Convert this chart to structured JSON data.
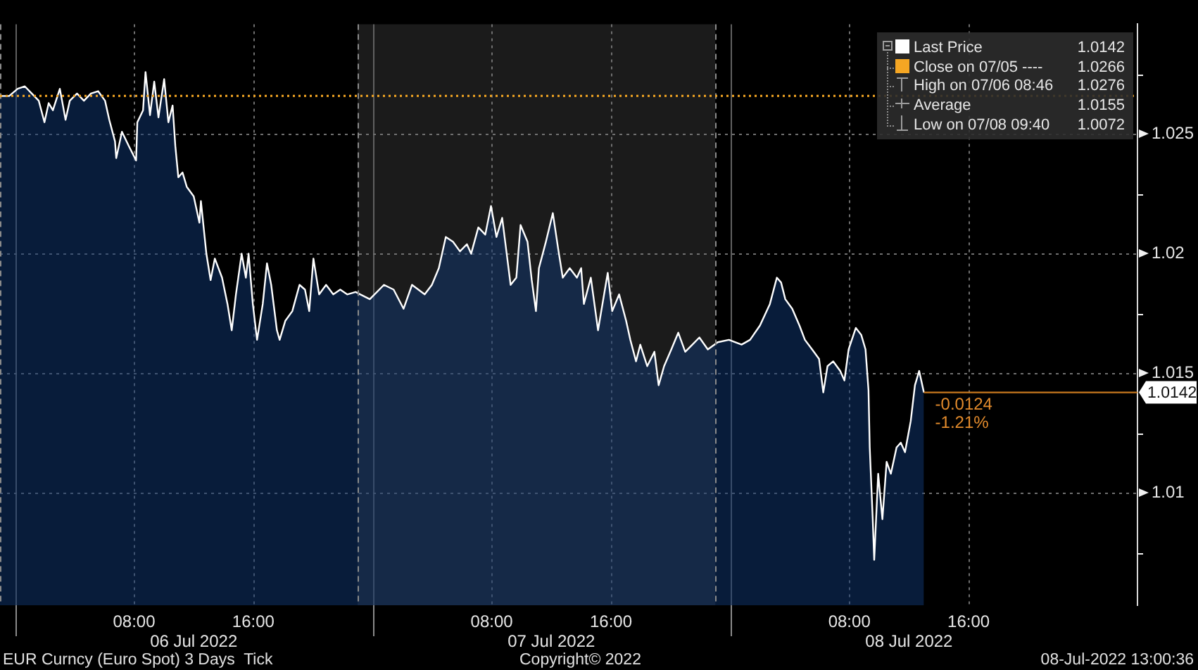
{
  "chart_data": {
    "type": "area",
    "title": "EUR Curncy (Euro Spot) 3 Days  Tick",
    "x": [
      "2022-07-05T23:00",
      "2022-07-05T23:37",
      "2022-07-06T00:11",
      "2022-07-06T00:40",
      "2022-07-06T01:08",
      "2022-07-06T01:36",
      "2022-07-06T01:59",
      "2022-07-06T02:16",
      "2022-07-06T02:33",
      "2022-07-06T03:01",
      "2022-07-06T03:24",
      "2022-07-06T03:41",
      "2022-07-06T04:10",
      "2022-07-06T04:38",
      "2022-07-06T05:06",
      "2022-07-06T05:35",
      "2022-07-06T06:03",
      "2022-07-06T06:20",
      "2022-07-06T06:43",
      "2022-07-06T06:48",
      "2022-07-06T07:11",
      "2022-07-06T07:39",
      "2022-07-06T08:08",
      "2022-07-06T08:13",
      "2022-07-06T08:36",
      "2022-07-06T08:46",
      "2022-07-06T09:04",
      "2022-07-06T09:21",
      "2022-07-06T09:38",
      "2022-07-06T10:01",
      "2022-07-06T10:18",
      "2022-07-06T10:35",
      "2022-07-06T10:46",
      "2022-07-06T10:58",
      "2022-07-06T11:15",
      "2022-07-06T11:32",
      "2022-07-06T12:00",
      "2022-07-06T12:23",
      "2022-07-06T12:29",
      "2022-07-06T12:51",
      "2022-07-06T13:08",
      "2022-07-06T13:25",
      "2022-07-06T13:54",
      "2022-07-06T14:16",
      "2022-07-06T14:33",
      "2022-07-06T14:50",
      "2022-07-06T15:13",
      "2022-07-06T15:30",
      "2022-07-06T15:41",
      "2022-07-06T15:58",
      "2022-07-06T16:15",
      "2022-07-06T16:38",
      "2022-07-06T16:55",
      "2022-07-06T17:12",
      "2022-07-06T17:35",
      "2022-07-06T17:46",
      "2022-07-06T18:09",
      "2022-07-06T18:37",
      "2022-07-06T19:06",
      "2022-07-06T19:28",
      "2022-07-06T19:45",
      "2022-07-06T20:02",
      "2022-07-06T20:25",
      "2022-07-06T20:53",
      "2022-07-06T21:22",
      "2022-07-06T21:50",
      "2022-07-06T22:18",
      "2022-07-06T22:52",
      "2022-07-06T23:49",
      "2022-07-07T00:46",
      "2022-07-07T01:25",
      "2022-07-07T02:05",
      "2022-07-07T02:39",
      "2022-07-07T03:30",
      "2022-07-07T03:59",
      "2022-07-07T04:27",
      "2022-07-07T04:55",
      "2022-07-07T05:24",
      "2022-07-07T05:52",
      "2022-07-07T06:20",
      "2022-07-07T06:37",
      "2022-07-07T07:06",
      "2022-07-07T07:34",
      "2022-07-07T07:57",
      "2022-07-07T08:19",
      "2022-07-07T08:42",
      "2022-07-07T08:59",
      "2022-07-07T09:16",
      "2022-07-07T09:39",
      "2022-07-07T09:56",
      "2022-07-07T10:24",
      "2022-07-07T10:41",
      "2022-07-07T10:58",
      "2022-07-07T11:10",
      "2022-07-07T11:38",
      "2022-07-07T12:06",
      "2022-07-07T12:29",
      "2022-07-07T12:46",
      "2022-07-07T13:14",
      "2022-07-07T13:43",
      "2022-07-07T14:00",
      "2022-07-07T14:11",
      "2022-07-07T14:39",
      "2022-07-07T15:08",
      "2022-07-07T15:47",
      "2022-07-07T16:05",
      "2022-07-07T16:33",
      "2022-07-07T17:01",
      "2022-07-07T17:18",
      "2022-07-07T17:41",
      "2022-07-07T17:58",
      "2022-07-07T18:26",
      "2022-07-07T18:55",
      "2022-07-07T19:12",
      "2022-07-07T19:34",
      "2022-07-07T20:03",
      "2022-07-07T20:31",
      "2022-07-07T20:59",
      "2022-07-07T21:28",
      "2022-07-07T21:56",
      "2022-07-07T22:30",
      "2022-07-07T23:10",
      "2022-07-07T23:55",
      "2022-07-08T00:46",
      "2022-07-08T01:20",
      "2022-07-08T02:00",
      "2022-07-08T02:40",
      "2022-07-08T03:08",
      "2022-07-08T03:25",
      "2022-07-08T03:42",
      "2022-07-08T04:10",
      "2022-07-08T04:39",
      "2022-07-08T05:01",
      "2022-07-08T05:30",
      "2022-07-08T05:58",
      "2022-07-08T06:15",
      "2022-07-08T06:32",
      "2022-07-08T06:55",
      "2022-07-08T07:23",
      "2022-07-08T07:40",
      "2022-07-08T07:57",
      "2022-07-08T08:26",
      "2022-07-08T08:48",
      "2022-07-08T09:05",
      "2022-07-08T09:17",
      "2022-07-08T09:22",
      "2022-07-08T09:34",
      "2022-07-08T09:40",
      "2022-07-08T09:56",
      "2022-07-08T10:13",
      "2022-07-08T10:30",
      "2022-07-08T10:47",
      "2022-07-08T11:10",
      "2022-07-08T11:27",
      "2022-07-08T11:44",
      "2022-07-08T12:07",
      "2022-07-08T12:24",
      "2022-07-08T12:41",
      "2022-07-08T13:00"
    ],
    "series": [
      {
        "name": "Last Price",
        "color": "#ffffff",
        "values": [
          1.0266,
          1.0266,
          1.0269,
          1.027,
          1.0267,
          1.0264,
          1.0255,
          1.0263,
          1.026,
          1.0269,
          1.0256,
          1.0264,
          1.0267,
          1.0264,
          1.0267,
          1.0268,
          1.0264,
          1.0256,
          1.0247,
          1.024,
          1.0251,
          1.0245,
          1.0239,
          1.0255,
          1.026,
          1.0276,
          1.0258,
          1.0272,
          1.0257,
          1.0273,
          1.0255,
          1.0262,
          1.0245,
          1.0232,
          1.0234,
          1.0228,
          1.0224,
          1.0213,
          1.0222,
          1.02,
          1.0189,
          1.0198,
          1.019,
          1.0179,
          1.0168,
          1.0183,
          1.02,
          1.019,
          1.02,
          1.0179,
          1.0164,
          1.0179,
          1.0196,
          1.0187,
          1.0168,
          1.0164,
          1.0172,
          1.0176,
          1.0187,
          1.0185,
          1.0176,
          1.0198,
          1.0183,
          1.0187,
          1.0183,
          1.0185,
          1.0183,
          1.0184,
          1.0181,
          1.0187,
          1.0185,
          1.0177,
          1.0187,
          1.0183,
          1.0187,
          1.0194,
          1.0207,
          1.0205,
          1.0201,
          1.0204,
          1.02,
          1.0211,
          1.0208,
          1.022,
          1.0207,
          1.0215,
          1.0201,
          1.0187,
          1.019,
          1.0212,
          1.0205,
          1.0189,
          1.0176,
          1.0194,
          1.0205,
          1.0217,
          1.0201,
          1.019,
          1.0194,
          1.019,
          1.0194,
          1.0179,
          1.019,
          1.0168,
          1.0192,
          1.0176,
          1.0183,
          1.0172,
          1.0164,
          1.0155,
          1.0162,
          1.0153,
          1.0159,
          1.0145,
          1.0153,
          1.016,
          1.0167,
          1.0159,
          1.0162,
          1.0165,
          1.016,
          1.0163,
          1.0164,
          1.0162,
          1.0164,
          1.017,
          1.0179,
          1.019,
          1.0188,
          1.0181,
          1.0177,
          1.017,
          1.0164,
          1.016,
          1.0156,
          1.0142,
          1.0153,
          1.0155,
          1.0151,
          1.0147,
          1.016,
          1.0169,
          1.0166,
          1.016,
          1.0143,
          1.0119,
          1.0089,
          1.0072,
          1.0108,
          1.0089,
          1.0113,
          1.0108,
          1.0119,
          1.0121,
          1.0117,
          1.013,
          1.0145,
          1.0151,
          1.0142
        ]
      }
    ],
    "xlim": [
      "2022-07-05T23:00",
      "2022-07-09T03:20"
    ],
    "xticks": [
      {
        "value": "2022-07-06T00:00",
        "label": null
      },
      {
        "value": "2022-07-06T08:00",
        "label": "08:00"
      },
      {
        "value": "2022-07-06T16:00",
        "label": "16:00"
      },
      {
        "value": "2022-07-07T00:00",
        "label": null
      },
      {
        "value": "2022-07-07T08:00",
        "label": "08:00"
      },
      {
        "value": "2022-07-07T16:00",
        "label": "16:00"
      },
      {
        "value": "2022-07-08T00:00",
        "label": null
      },
      {
        "value": "2022-07-08T08:00",
        "label": "08:00"
      },
      {
        "value": "2022-07-08T16:00",
        "label": "16:00"
      }
    ],
    "ylim": [
      1.0053,
      1.0296
    ],
    "yticks": [
      {
        "value": 1.0075,
        "label": null
      },
      1.01,
      {
        "value": 1.0125,
        "label": null
      },
      1.015,
      {
        "value": 1.0175,
        "label": null
      },
      1.02,
      {
        "value": 1.0225,
        "label": null
      },
      1.025,
      {
        "value": 1.0275,
        "label": null
      }
    ],
    "bands": [
      {
        "axis": "x",
        "from": "2022-07-06T23:00",
        "to": "2022-07-07T23:00",
        "color": "#1b1b1b"
      }
    ],
    "ref_lines": [
      {
        "axis": "x",
        "value": "2022-07-05T23:00",
        "color": "#8a8a8a",
        "line_style": "dashed"
      },
      {
        "axis": "x",
        "value": "2022-07-06T23:00",
        "color": "#8a8a8a",
        "line_style": "dashed"
      },
      {
        "axis": "x",
        "value": "2022-07-07T23:00",
        "color": "#8a8a8a",
        "line_style": "dashed"
      },
      {
        "axis": "y",
        "value": 1.0266,
        "label": "Close on 07/05 ---- 1.0266",
        "color": "#f5a623",
        "line_style": "dotted"
      },
      {
        "axis": "y",
        "value": 1.0142,
        "label": "1.0142",
        "color": "#c8781e",
        "line_style": "solid"
      }
    ],
    "annotations": [
      {
        "text": "-0.0124",
        "x": "2022-07-08T13:00",
        "y": 1.0142
      },
      {
        "text": "-1.21%",
        "x": "2022-07-08T13:00",
        "y": 1.0142
      },
      "1.0142",
      "High on 07/06 08:46 1.0276",
      "Average 1.0155",
      "Low on 07/08 09:40 1.0072",
      "06 Jul 2022",
      "07 Jul 2022",
      "08 Jul 2022",
      "Copyright© 2022",
      "08-Jul-2022 13:00:36"
    ],
    "legend": "top right",
    "grid": true
  }
}
